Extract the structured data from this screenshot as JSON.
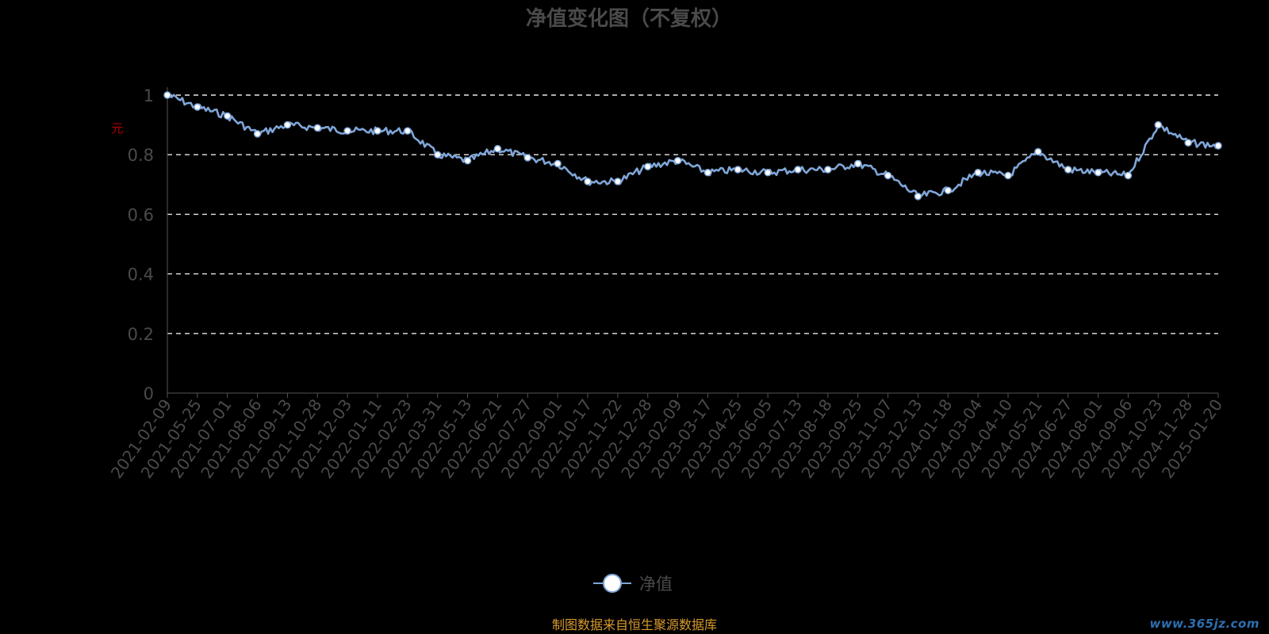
{
  "chart_data": {
    "type": "line",
    "title": "净值变化图（不复权）",
    "ylabel": "",
    "y_axis_mark": "元",
    "ylim": [
      0,
      1
    ],
    "y_ticks": [
      "0",
      "0.2",
      "0.4",
      "0.6",
      "0.8",
      "1"
    ],
    "grid": "horizontal-dashed",
    "legend_placement": "bottom-center",
    "x_tick_labels": [
      "2021-02-09",
      "2021-05-25",
      "2021-07-01",
      "2021-08-06",
      "2021-09-13",
      "2021-10-28",
      "2021-12-03",
      "2022-01-11",
      "2022-02-23",
      "2022-03-31",
      "2022-05-13",
      "2022-06-21",
      "2022-07-27",
      "2022-09-01",
      "2022-10-17",
      "2022-11-22",
      "2022-12-28",
      "2023-02-09",
      "2023-03-17",
      "2023-04-25",
      "2023-06-05",
      "2023-07-13",
      "2023-08-18",
      "2023-09-25",
      "2023-11-07",
      "2023-12-13",
      "2024-01-18",
      "2024-03-04",
      "2024-04-10",
      "2024-05-21",
      "2024-06-27",
      "2024-08-01",
      "2024-09-06",
      "2024-10-23",
      "2024-11-28",
      "2025-01-20"
    ],
    "series": [
      {
        "name": "净值",
        "color": "#7fa6d8",
        "x": [
          "2021-02-09",
          "2021-05-25",
          "2021-07-01",
          "2021-08-06",
          "2021-09-13",
          "2021-10-28",
          "2021-12-03",
          "2022-01-11",
          "2022-02-23",
          "2022-03-31",
          "2022-05-13",
          "2022-06-21",
          "2022-07-27",
          "2022-09-01",
          "2022-10-17",
          "2022-11-22",
          "2022-12-28",
          "2023-02-09",
          "2023-03-17",
          "2023-04-25",
          "2023-06-05",
          "2023-07-13",
          "2023-08-18",
          "2023-09-25",
          "2023-11-07",
          "2023-12-13",
          "2024-01-18",
          "2024-03-04",
          "2024-04-10",
          "2024-05-21",
          "2024-06-27",
          "2024-08-01",
          "2024-09-06",
          "2024-10-23",
          "2024-11-28",
          "2025-01-20"
        ],
        "values": [
          1.0,
          0.96,
          0.93,
          0.87,
          0.9,
          0.89,
          0.88,
          0.88,
          0.88,
          0.8,
          0.78,
          0.82,
          0.79,
          0.77,
          0.71,
          0.71,
          0.76,
          0.78,
          0.74,
          0.75,
          0.74,
          0.75,
          0.75,
          0.77,
          0.73,
          0.66,
          0.68,
          0.74,
          0.73,
          0.81,
          0.75,
          0.74,
          0.73,
          0.9,
          0.84,
          0.83
        ]
      }
    ]
  },
  "legend": {
    "label": "净值"
  },
  "footer": {
    "source_note": "制图数据来自恒生聚源数据库",
    "watermark": "www.365jz.com"
  }
}
